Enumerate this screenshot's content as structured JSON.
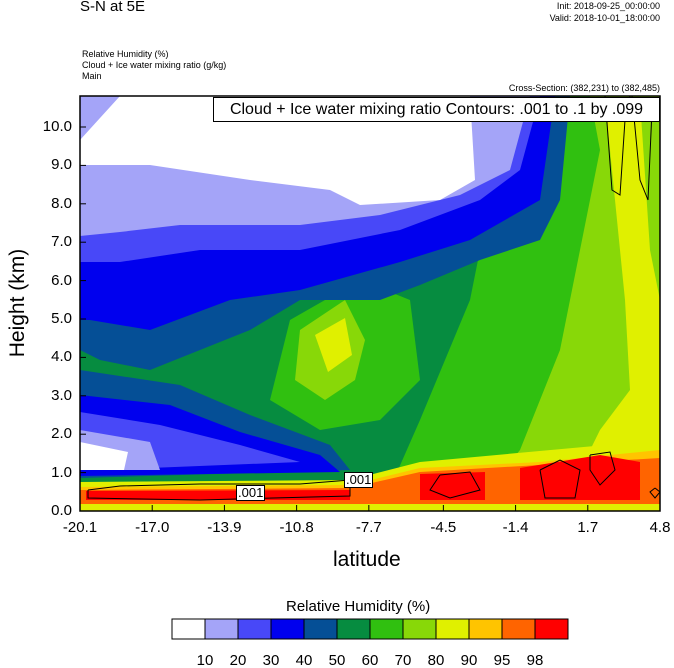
{
  "header": {
    "title": "S-N at 5E",
    "init": "Init: 2018-09-25_00:00:00",
    "valid": "Valid: 2018-10-01_18:00:00",
    "field1": "Relative Humidity   (%)",
    "field2": "Cloud + Ice water mixing ratio   (g/kg)",
    "field3": "Main",
    "cross_section": "Cross-Section: (382,231) to (382,485)"
  },
  "chart_data": {
    "type": "contour",
    "title": "S-N at 5E",
    "xlabel": "latitude",
    "ylabel": "Height (km)",
    "xlim": [
      -20.1,
      4.8
    ],
    "ylim": [
      0,
      10.8
    ],
    "x_ticks": [
      "-20.1",
      "-17.0",
      "-13.9",
      "-10.8",
      "-7.7",
      "-4.5",
      "-1.4",
      "1.7",
      "4.8"
    ],
    "x_tick_values": [
      -20.1,
      -17.0,
      -13.9,
      -10.8,
      -7.7,
      -4.5,
      -1.4,
      1.7,
      4.8
    ],
    "y_ticks": [
      "0.0",
      "1.0",
      "2.0",
      "3.0",
      "4.0",
      "5.0",
      "6.0",
      "7.0",
      "8.0",
      "9.0",
      "10.0"
    ],
    "contour_info": "Cloud + Ice water mixing ratio Contours: .001 to .1 by .099",
    "contour_labels": [
      ".001",
      ".001"
    ],
    "colorbar": {
      "title": "Relative Humidity  (%)",
      "labels": [
        "10",
        "20",
        "30",
        "40",
        "50",
        "60",
        "70",
        "80",
        "90",
        "95",
        "98"
      ],
      "colors": [
        "#ffffff",
        "#a4a4f8",
        "#4848f8",
        "#0000ee",
        "#054f96",
        "#068c40",
        "#30c010",
        "#88d808",
        "#e0f000",
        "#ffc400",
        "#ff6400",
        "#ff0000"
      ]
    }
  }
}
